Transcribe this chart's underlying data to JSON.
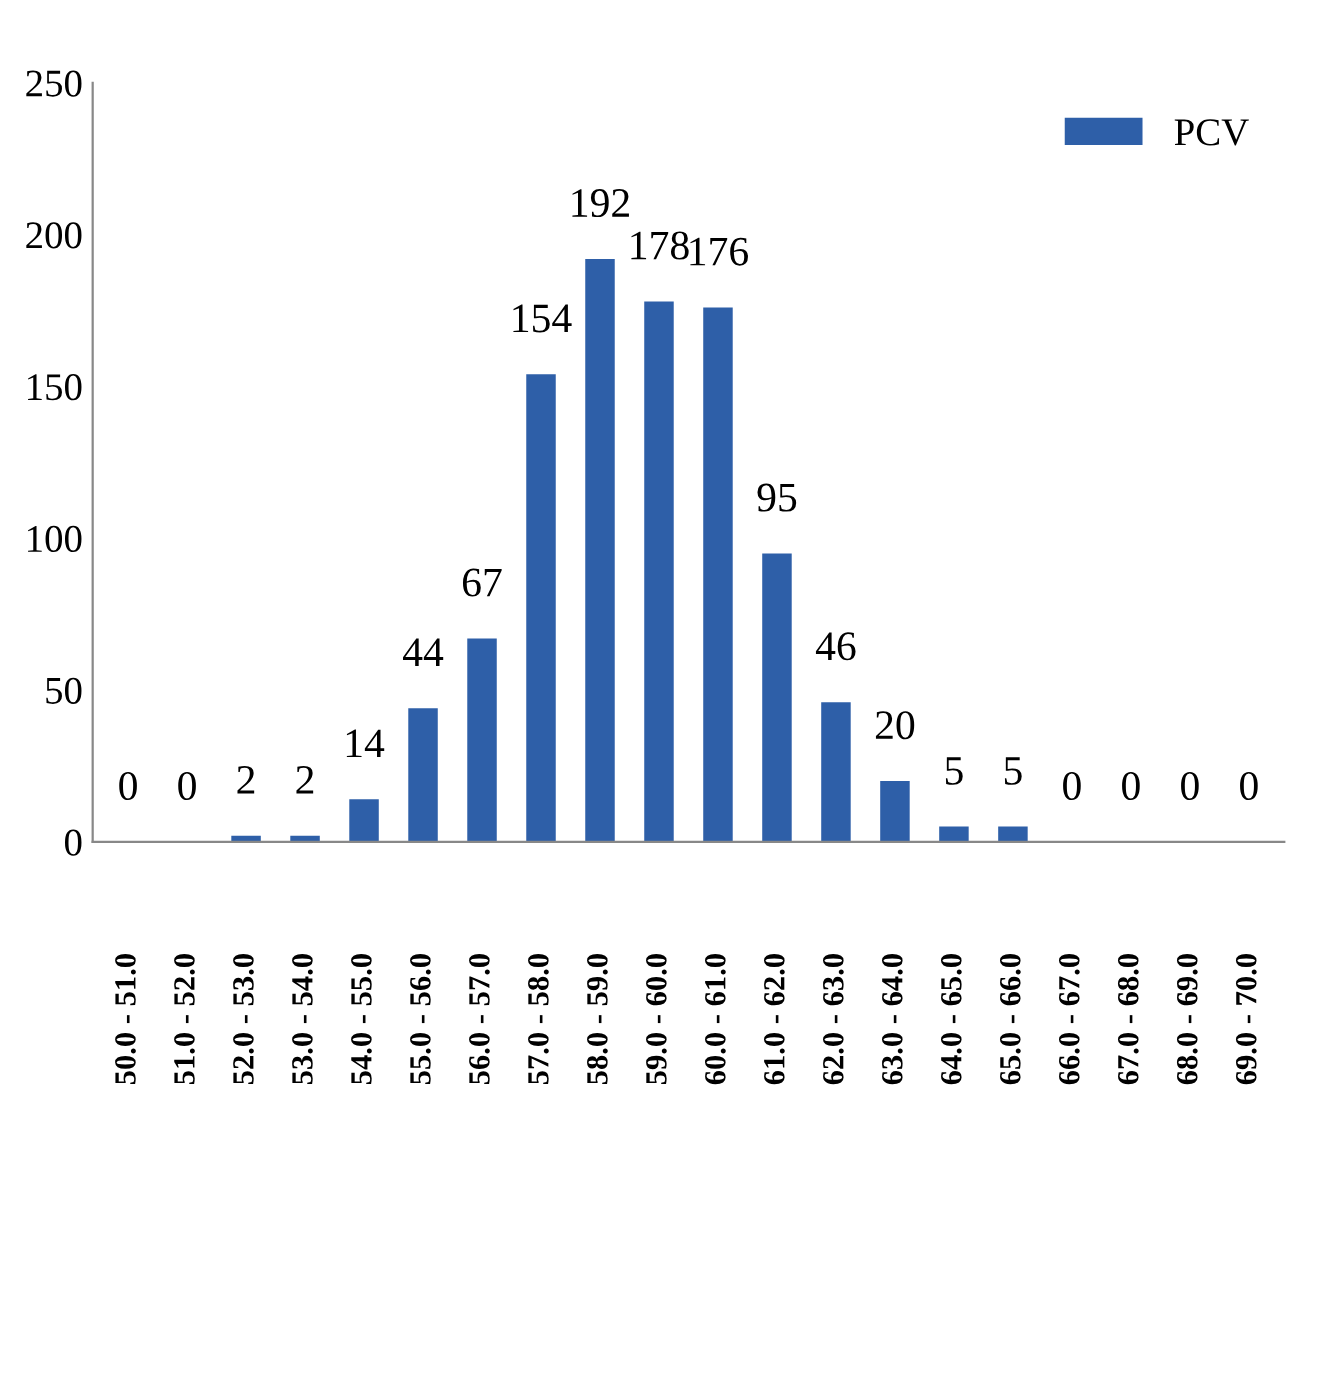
{
  "chart_data": {
    "type": "bar",
    "categories": [
      "50.0 - 51.0",
      "51.0 - 52.0",
      "52.0 - 53.0",
      "53.0 - 54.0",
      "54.0 - 55.0",
      "55.0 - 56.0",
      "56.0 - 57.0",
      "57.0 - 58.0",
      "58.0 - 59.0",
      "59.0 - 60.0",
      "60.0 - 61.0",
      "61.0 - 62.0",
      "62.0 - 63.0",
      "63.0 - 64.0",
      "64.0 - 65.0",
      "65.0 - 66.0",
      "66.0 - 67.0",
      "67.0 - 68.0",
      "68.0 - 69.0",
      "69.0 - 70.0"
    ],
    "series": [
      {
        "name": "PCV",
        "color": "#2e5fa8",
        "values": [
          0,
          0,
          2,
          2,
          14,
          44,
          67,
          154,
          192,
          178,
          176,
          95,
          46,
          20,
          5,
          5,
          0,
          0,
          0,
          0
        ]
      }
    ],
    "ylim": [
      0,
      250
    ],
    "yticks": [
      0,
      50,
      100,
      150,
      200,
      250
    ],
    "data_labels": true,
    "grid": false,
    "legend": "top right"
  }
}
